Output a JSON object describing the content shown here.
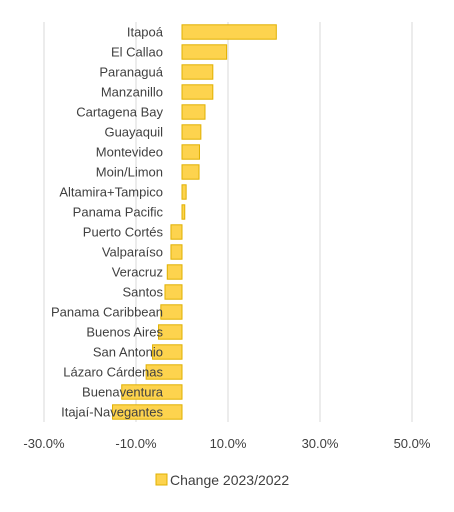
{
  "chart_data": {
    "type": "bar",
    "orientation": "horizontal",
    "categories": [
      "Itapoá",
      "El Callao",
      "Paranaguá",
      "Manzanillo",
      "Cartagena Bay",
      "Guayaquil",
      "Montevideo",
      "Moin/Limon",
      "Altamira+Tampico",
      "Panama Pacific",
      "Puerto Cortés",
      "Valparaíso",
      "Veracruz",
      "Santos",
      "Panama Caribbean",
      "Buenos Aires",
      "San Antonio",
      "Lázaro Cárdenas",
      "Buenaventura",
      "Itajaí-Navegantes"
    ],
    "series": [
      {
        "name": "Change 2023/2022",
        "values": [
          20.5,
          9.7,
          6.7,
          6.7,
          5.0,
          4.1,
          3.8,
          3.7,
          0.9,
          0.6,
          -2.4,
          -2.4,
          -3.2,
          -3.7,
          -4.6,
          -5.1,
          -6.4,
          -7.8,
          -13.1,
          -15.1
        ]
      }
    ],
    "xlim": [
      -30,
      50
    ],
    "xticks": [
      "-30.0%",
      "-10.0%",
      "10.0%",
      "30.0%",
      "50.0%"
    ],
    "xtick_values": [
      -30,
      -10,
      10,
      30,
      50
    ],
    "grid": true,
    "legend": "bottom",
    "colors": {
      "bar_fill": "#FDD34E",
      "bar_stroke": "#E0B000",
      "grid": "#D9D9D9",
      "text": "#404040"
    }
  }
}
